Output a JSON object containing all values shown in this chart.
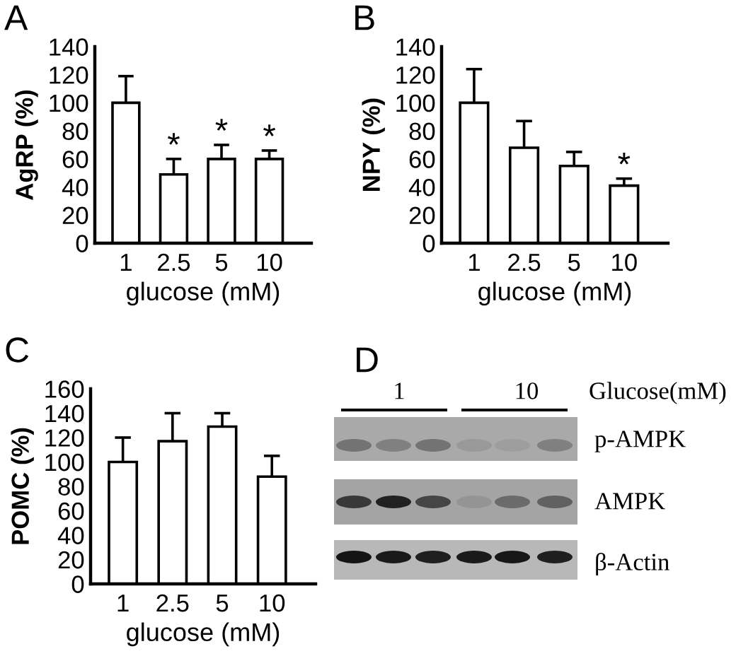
{
  "chart_data": [
    {
      "type": "bar",
      "title": "A",
      "xlabel": "glucose (mM)",
      "ylabel": "AgRP (%)",
      "categories": [
        "1",
        "2.5",
        "5",
        "10"
      ],
      "values": [
        100,
        49,
        60,
        60
      ],
      "color": "#ffffff",
      "errors": [
        [
          100,
          119
        ],
        [
          49,
          60
        ],
        [
          60,
          70
        ],
        [
          60,
          66
        ]
      ],
      "ylim": [
        0,
        140
      ],
      "yticks": [
        0,
        20,
        40,
        60,
        80,
        100,
        120,
        140
      ],
      "annotations": [
        {
          "text": "*",
          "x": "2.5",
          "y": 60
        },
        {
          "text": "*",
          "x": "5",
          "y": 70
        },
        {
          "text": "*",
          "x": "10",
          "y": 66
        }
      ]
    },
    {
      "type": "bar",
      "title": "B",
      "xlabel": "glucose (mM)",
      "ylabel": "NPY (%)",
      "categories": [
        "1",
        "2.5",
        "5",
        "10"
      ],
      "values": [
        100,
        68,
        55,
        41
      ],
      "color": "#ffffff",
      "errors": [
        [
          100,
          124
        ],
        [
          68,
          87
        ],
        [
          55,
          65
        ],
        [
          41,
          46
        ]
      ],
      "ylim": [
        0,
        140
      ],
      "yticks": [
        0,
        20,
        40,
        60,
        80,
        100,
        120,
        140
      ],
      "annotations": [
        {
          "text": "*",
          "x": "10",
          "y": 46
        }
      ]
    },
    {
      "type": "bar",
      "title": "C",
      "xlabel": "glucose (mM)",
      "ylabel": "POMC (%)",
      "categories": [
        "1",
        "2.5",
        "5",
        "10"
      ],
      "values": [
        100,
        117,
        129,
        88
      ],
      "color": "#ffffff",
      "errors": [
        [
          100,
          120
        ],
        [
          117,
          140
        ],
        [
          129,
          140
        ],
        [
          88,
          105
        ]
      ],
      "ylim": [
        0,
        160
      ],
      "yticks": [
        0,
        20,
        40,
        60,
        80,
        100,
        120,
        140,
        160
      ]
    },
    {
      "type": "other",
      "title": "D",
      "annotations": [
        "1",
        "10",
        "Glucose(mM)",
        "p-AMPK",
        "AMPK",
        "β-Actin"
      ]
    }
  ]
}
